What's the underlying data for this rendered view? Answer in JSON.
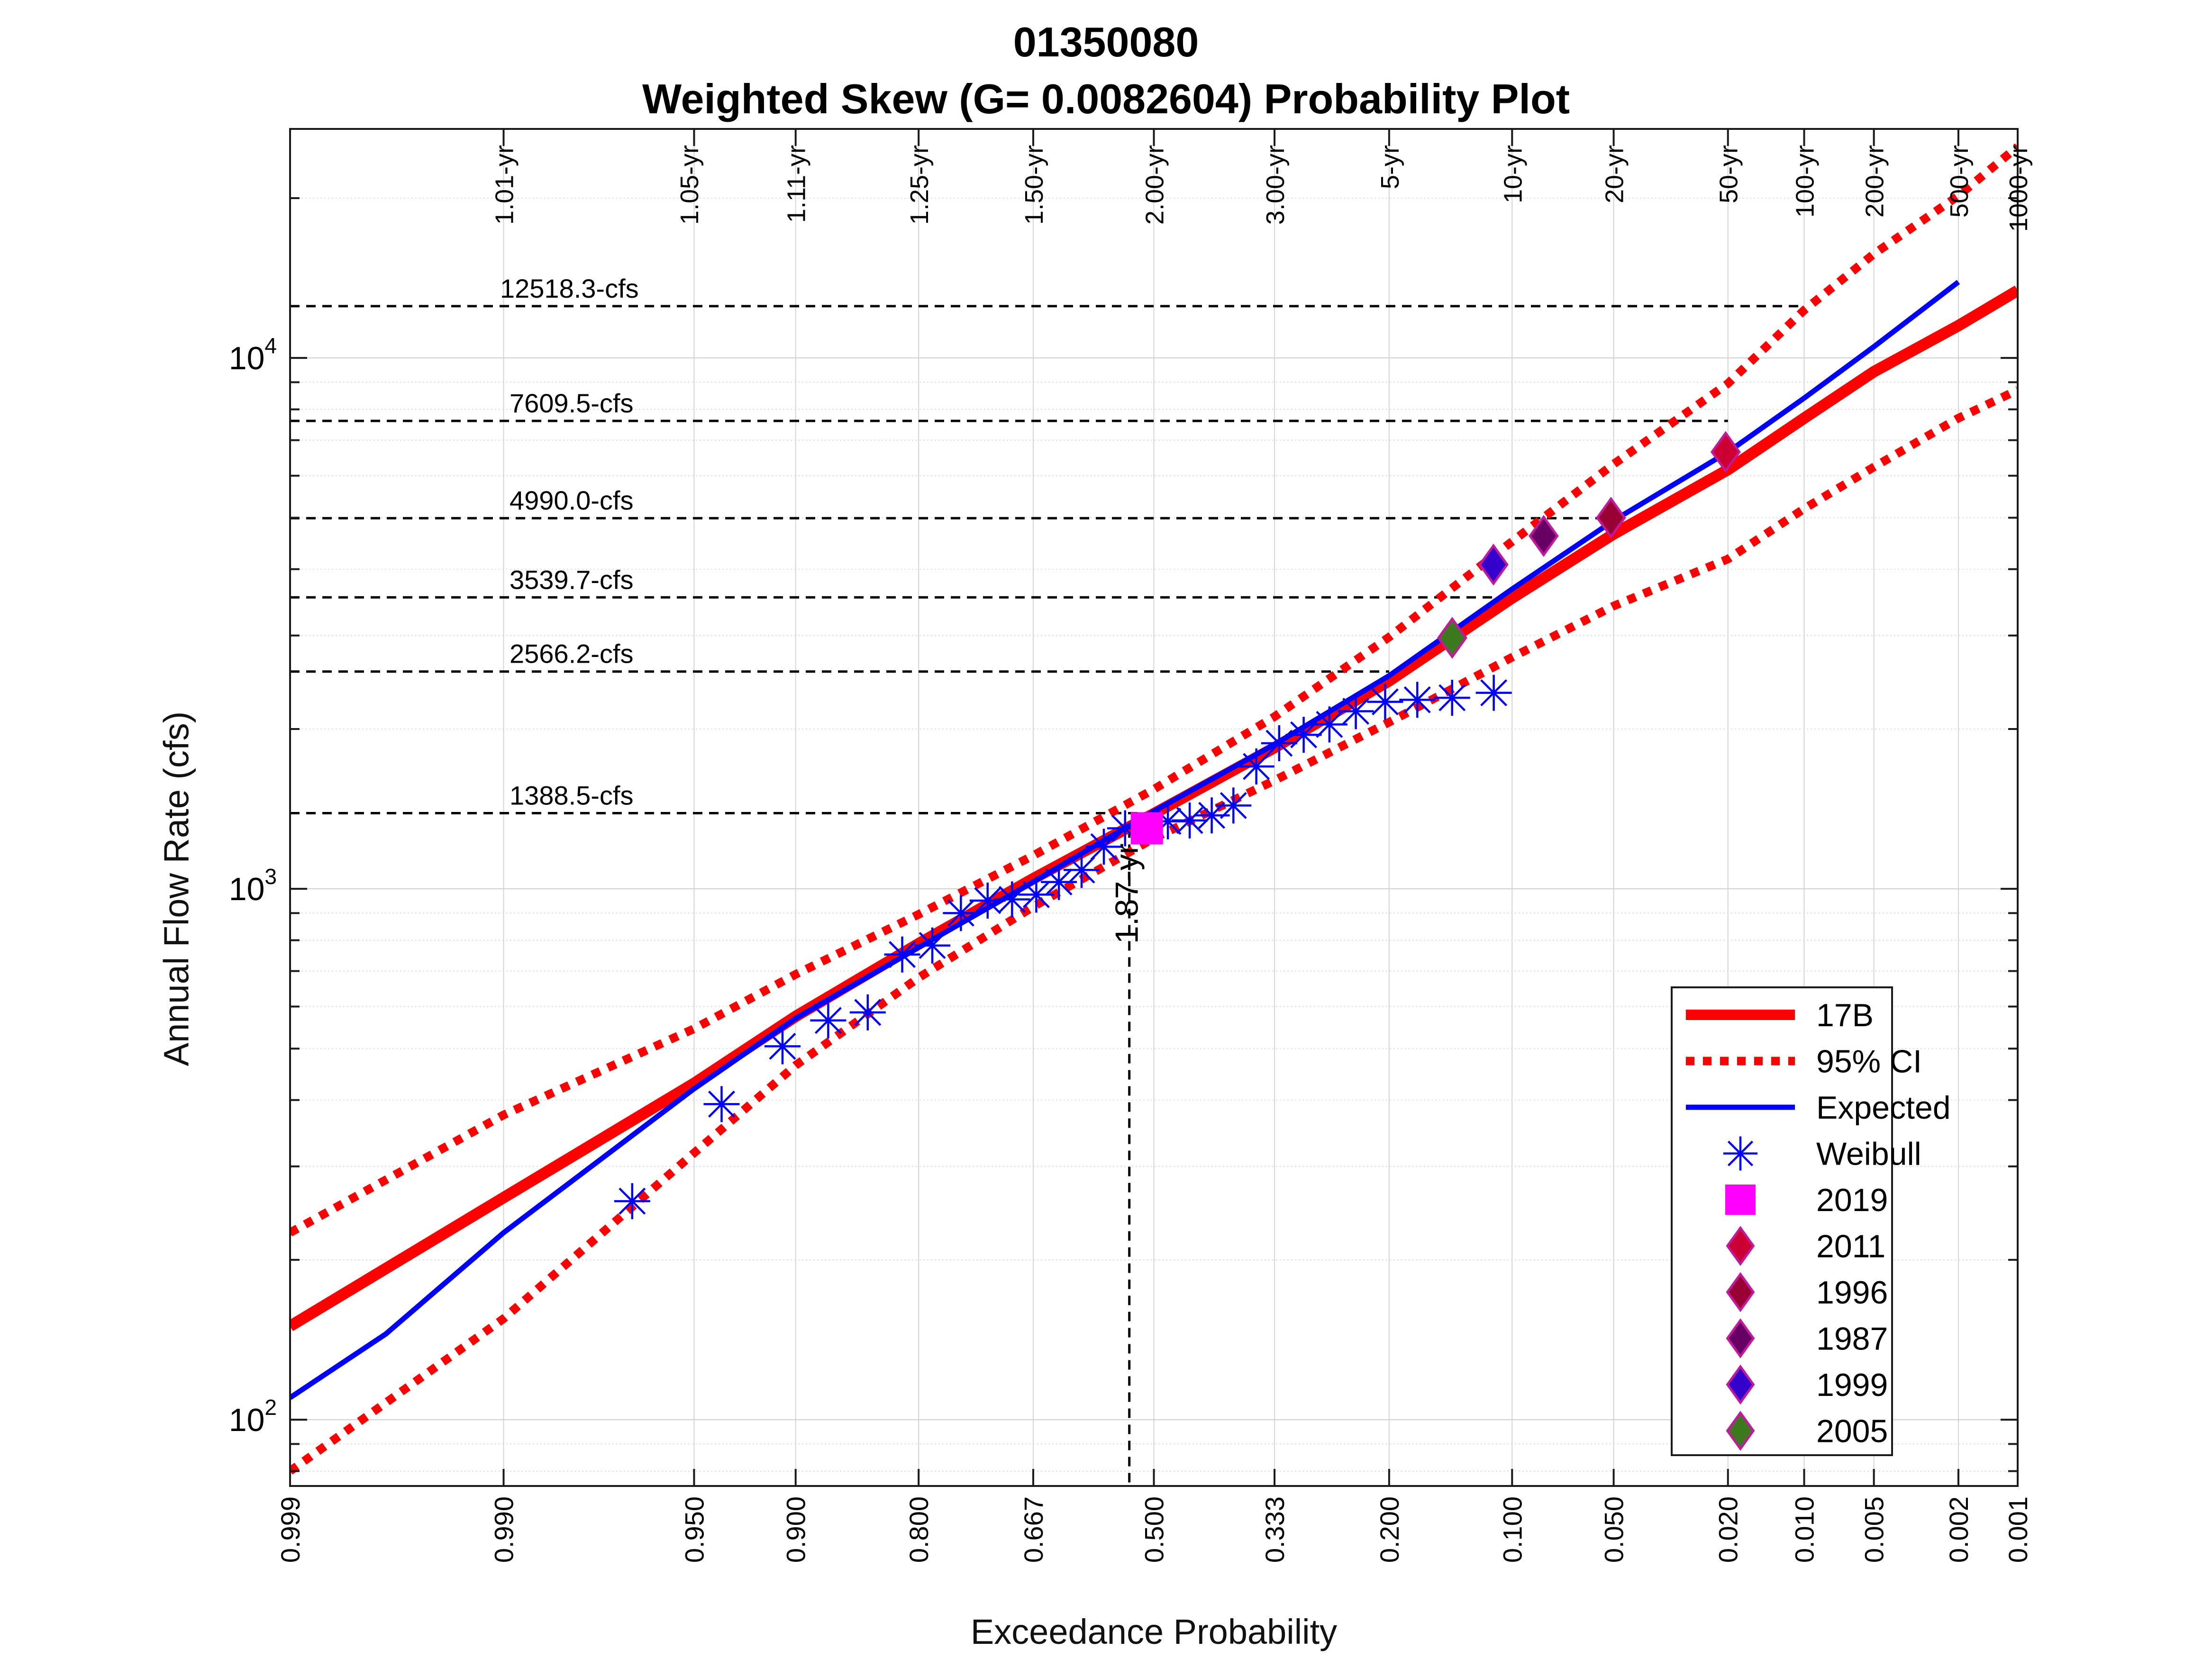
{
  "titles": {
    "line1": "01350080",
    "line2": "Weighted Skew (G= 0.0082604) Probability Plot"
  },
  "chart_data": {
    "type": "line",
    "title": "01350080",
    "subtitle": "Weighted Skew (G= 0.0082604) Probability Plot",
    "xlabel": "Exceedance Probability",
    "ylabel": "Annual Flow Rate (cfs)",
    "x_scale": "normal-probability (reversed)",
    "y_scale": "log",
    "xlim": [
      0.999,
      0.001
    ],
    "ylim": [
      75,
      27000
    ],
    "x_ticks": [
      "0.999",
      "0.990",
      "0.950",
      "0.900",
      "0.800",
      "0.667",
      "0.500",
      "0.333",
      "0.200",
      "0.100",
      "0.050",
      "0.020",
      "0.010",
      "0.005",
      "0.002",
      "0.001"
    ],
    "y_ticks": [
      {
        "value": 100,
        "base": "10",
        "exp": "2"
      },
      {
        "value": 1000,
        "base": "10",
        "exp": "3"
      },
      {
        "value": 10000,
        "base": "10",
        "exp": "4"
      }
    ],
    "return_periods": [
      {
        "label": "1.01-yr",
        "p": 0.99
      },
      {
        "label": "1.05-yr",
        "p": 0.952
      },
      {
        "label": "1.11-yr",
        "p": 0.9
      },
      {
        "label": "1.25-yr",
        "p": 0.8
      },
      {
        "label": "1.50-yr",
        "p": 0.667
      },
      {
        "label": "2.00-yr",
        "p": 0.5
      },
      {
        "label": "3.00-yr",
        "p": 0.333
      },
      {
        "label": "5-yr",
        "p": 0.2
      },
      {
        "label": "10-yr",
        "p": 0.1
      },
      {
        "label": "20-yr",
        "p": 0.05
      },
      {
        "label": "50-yr",
        "p": 0.02
      },
      {
        "label": "100-yr",
        "p": 0.01
      },
      {
        "label": "200-yr",
        "p": 0.005
      },
      {
        "label": "500-yr",
        "p": 0.002
      },
      {
        "label": "1000-yr",
        "p": 0.001
      }
    ],
    "reference_lines": [
      {
        "label": "12518.3-cfs",
        "value": 12518.3,
        "x_end": 0.01
      },
      {
        "label": "7609.5-cfs",
        "value": 7609.5,
        "x_end": 0.02
      },
      {
        "label": "4990.0-cfs",
        "value": 4990.0,
        "x_end": 0.05
      },
      {
        "label": "3539.7-cfs",
        "value": 3539.7,
        "x_end": 0.1
      },
      {
        "label": "2566.2-cfs",
        "value": 2566.2,
        "x_end": 0.2
      },
      {
        "label": "1388.5-cfs",
        "value": 1388.5,
        "x_end": 0.5
      }
    ],
    "highlight_event": {
      "label": "1.87-yr",
      "p": 0.535,
      "value": 1300
    },
    "series": [
      {
        "name": "17B",
        "style": "solid-thick",
        "color": "#ff0000",
        "points": [
          [
            0.999,
            150
          ],
          [
            0.99,
            262
          ],
          [
            0.95,
            430
          ],
          [
            0.9,
            575
          ],
          [
            0.8,
            788
          ],
          [
            0.667,
            1045
          ],
          [
            0.5,
            1385
          ],
          [
            0.333,
            1845
          ],
          [
            0.2,
            2465
          ],
          [
            0.1,
            3530
          ],
          [
            0.05,
            4660
          ],
          [
            0.02,
            6160
          ],
          [
            0.01,
            7700
          ],
          [
            0.005,
            9420
          ],
          [
            0.002,
            11500
          ],
          [
            0.001,
            13400
          ]
        ]
      },
      {
        "name": "95% CI",
        "style": "dotted-thick",
        "color": "#ff0000",
        "points": [
          [
            0.999,
            225
          ],
          [
            0.99,
            375
          ],
          [
            0.95,
            545
          ],
          [
            0.9,
            690
          ],
          [
            0.8,
            895
          ],
          [
            0.667,
            1155
          ],
          [
            0.5,
            1540
          ],
          [
            0.333,
            2110
          ],
          [
            0.2,
            2980
          ],
          [
            0.1,
            4510
          ],
          [
            0.05,
            6310
          ],
          [
            0.02,
            8950
          ],
          [
            0.01,
            12300
          ],
          [
            0.005,
            15700
          ],
          [
            0.002,
            20200
          ],
          [
            0.001,
            25000
          ]
        ]
      },
      {
        "name": "95% CI lower",
        "style": "dotted-thick",
        "color": "#ff0000",
        "points": [
          [
            0.999,
            80
          ],
          [
            0.99,
            155
          ],
          [
            0.95,
            318
          ],
          [
            0.9,
            465
          ],
          [
            0.8,
            680
          ],
          [
            0.667,
            925
          ],
          [
            0.5,
            1245
          ],
          [
            0.333,
            1600
          ],
          [
            0.2,
            2060
          ],
          [
            0.1,
            2730
          ],
          [
            0.05,
            3410
          ],
          [
            0.02,
            4180
          ],
          [
            0.01,
            5200
          ],
          [
            0.005,
            6230
          ],
          [
            0.002,
            7700
          ],
          [
            0.001,
            8700
          ]
        ]
      },
      {
        "name": "Expected",
        "style": "solid",
        "color": "#0000ff",
        "points": [
          [
            0.999,
            110
          ],
          [
            0.997,
            145
          ],
          [
            0.99,
            225
          ],
          [
            0.95,
            420
          ],
          [
            0.9,
            570
          ],
          [
            0.8,
            775
          ],
          [
            0.667,
            1030
          ],
          [
            0.5,
            1400
          ],
          [
            0.333,
            1870
          ],
          [
            0.2,
            2520
          ],
          [
            0.1,
            3670
          ],
          [
            0.05,
            4940
          ],
          [
            0.02,
            6650
          ],
          [
            0.01,
            8400
          ],
          [
            0.005,
            10500
          ],
          [
            0.002,
            13900
          ]
        ]
      },
      {
        "name": "Weibull",
        "style": "marker-asterisk",
        "color": "#0000ff",
        "points": [
          [
            0.969,
            258
          ],
          [
            0.939,
            393
          ],
          [
            0.908,
            505
          ],
          [
            0.878,
            565
          ],
          [
            0.847,
            585
          ],
          [
            0.816,
            752
          ],
          [
            0.786,
            782
          ],
          [
            0.755,
            900
          ],
          [
            0.724,
            950
          ],
          [
            0.694,
            955
          ],
          [
            0.663,
            975
          ],
          [
            0.633,
            1030
          ],
          [
            0.602,
            1085
          ],
          [
            0.571,
            1200
          ],
          [
            0.541,
            1300
          ],
          [
            0.48,
            1340
          ],
          [
            0.449,
            1345
          ],
          [
            0.418,
            1375
          ],
          [
            0.388,
            1435
          ],
          [
            0.357,
            1700
          ],
          [
            0.327,
            1880
          ],
          [
            0.296,
            1950
          ],
          [
            0.265,
            2040
          ],
          [
            0.235,
            2160
          ],
          [
            0.204,
            2250
          ],
          [
            0.173,
            2270
          ],
          [
            0.143,
            2290
          ],
          [
            0.112,
            2340
          ]
        ]
      },
      {
        "name": "2019",
        "style": "marker-square",
        "color": "#ff00ff",
        "points": [
          [
            0.51,
            1300
          ]
        ]
      },
      {
        "name": "2011",
        "style": "marker-diamond",
        "color": "#cc0033",
        "points": [
          [
            0.0204,
            6650
          ]
        ]
      },
      {
        "name": "1996",
        "style": "marker-diamond",
        "color": "#990033",
        "points": [
          [
            0.051,
            5000
          ]
        ]
      },
      {
        "name": "1987",
        "style": "marker-diamond",
        "color": "#660066",
        "points": [
          [
            0.0816,
            4620
          ]
        ]
      },
      {
        "name": "1999",
        "style": "marker-diamond",
        "color": "#3300cc",
        "points": [
          [
            0.1122,
            4080
          ]
        ]
      },
      {
        "name": "2005",
        "style": "marker-diamond",
        "color": "#3d7a1f",
        "points": [
          [
            0.1429,
            2970
          ]
        ]
      }
    ],
    "legend": {
      "position": "bottom-right",
      "entries": [
        {
          "label": "17B",
          "kind": "line-thick",
          "color": "#ff0000"
        },
        {
          "label": "95% CI",
          "kind": "line-dotted",
          "color": "#ff0000"
        },
        {
          "label": "Expected",
          "kind": "line",
          "color": "#0000ff"
        },
        {
          "label": "Weibull",
          "kind": "asterisk",
          "color": "#0000ff"
        },
        {
          "label": "2019",
          "kind": "square",
          "color": "#ff00ff"
        },
        {
          "label": "2011",
          "kind": "diamond",
          "color": "#cc0033"
        },
        {
          "label": "1996",
          "kind": "diamond",
          "color": "#990033"
        },
        {
          "label": "1987",
          "kind": "diamond",
          "color": "#660066"
        },
        {
          "label": "1999",
          "kind": "diamond",
          "color": "#3300cc"
        },
        {
          "label": "2005",
          "kind": "diamond",
          "color": "#3d7a1f"
        }
      ]
    },
    "grid": true
  }
}
